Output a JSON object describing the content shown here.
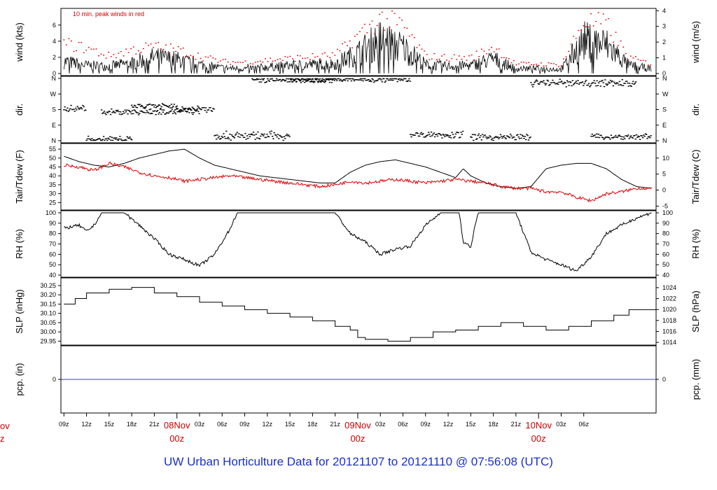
{
  "figure_title": "UW Urban Horticulture Data for 20121107  to  20121110 @ 07:56:08  (UTC)",
  "chart_data": [
    {
      "type": "line",
      "panel": "wind",
      "ylabel_left": "wind (kts)",
      "ylabel_right": "wind (m/s)",
      "ylim": [
        0,
        7.8
      ],
      "yticks_left": [
        0,
        2,
        4,
        6
      ],
      "yticks_right": [
        0,
        1,
        2,
        3,
        4
      ],
      "right_scale": "m/s",
      "annotation": "10 min. peak winds in red",
      "series": [
        {
          "role": "mean",
          "color": "#000000",
          "x": [
            0,
            3,
            6,
            9,
            12,
            15,
            18,
            21,
            24,
            27,
            30,
            33,
            36,
            39,
            42,
            45,
            48,
            51,
            54,
            57,
            60,
            63,
            66,
            69,
            72,
            75,
            78
          ],
          "y": [
            1.5,
            1.0,
            0.9,
            1.3,
            2.0,
            1.7,
            1.1,
            0.7,
            0.6,
            0.8,
            1.0,
            1.1,
            1.2,
            2.5,
            4.2,
            3.2,
            1.1,
            0.9,
            1.0,
            1.8,
            0.6,
            0.6,
            0.5,
            4.0,
            3.5,
            1.0,
            0.6
          ]
        },
        {
          "role": "peak",
          "color": "#dd0000",
          "x": [
            0,
            3,
            6,
            9,
            12,
            15,
            18,
            21,
            24,
            27,
            30,
            33,
            36,
            39,
            42,
            45,
            48,
            51,
            54,
            57,
            60,
            63,
            66,
            69,
            72,
            75,
            78
          ],
          "y": [
            3.8,
            3.2,
            2.2,
            3.0,
            3.4,
            3.0,
            2.2,
            1.5,
            1.4,
            1.7,
            1.9,
            2.1,
            2.3,
            4.8,
            7.0,
            6.0,
            2.2,
            2.0,
            2.0,
            3.4,
            1.2,
            1.2,
            1.1,
            6.6,
            6.2,
            2.0,
            1.2
          ]
        }
      ]
    },
    {
      "type": "scatter",
      "panel": "direction",
      "ylabel_left": "dir.",
      "ylabel_right": "dir.",
      "ylim": [
        0,
        360
      ],
      "yticks": [
        {
          "v": 0,
          "label": "N"
        },
        {
          "v": 90,
          "label": "E"
        },
        {
          "v": 180,
          "label": "S"
        },
        {
          "v": 270,
          "label": "W"
        },
        {
          "v": 360,
          "label": "N"
        }
      ],
      "segments": [
        {
          "x": [
            0,
            3
          ],
          "y": [
            180,
            195
          ]
        },
        {
          "x": [
            3,
            9
          ],
          "y": [
            0,
            15
          ]
        },
        {
          "x": [
            5,
            18
          ],
          "y": [
            160,
            175
          ]
        },
        {
          "x": [
            9,
            15
          ],
          "y": [
            190,
            205
          ]
        },
        {
          "x": [
            15,
            20
          ],
          "y": [
            175,
            195
          ]
        },
        {
          "x": [
            20,
            30
          ],
          "y": [
            10,
            45
          ]
        },
        {
          "x": [
            25,
            36
          ],
          "y": [
            345,
            355
          ]
        },
        {
          "x": [
            30,
            46
          ],
          "y": [
            348,
            358
          ]
        },
        {
          "x": [
            46,
            53
          ],
          "y": [
            25,
            45
          ]
        },
        {
          "x": [
            54,
            62
          ],
          "y": [
            10,
            30
          ]
        },
        {
          "x": [
            62,
            76
          ],
          "y": [
            320,
            345
          ]
        },
        {
          "x": [
            70,
            78
          ],
          "y": [
            15,
            30
          ]
        }
      ]
    },
    {
      "type": "line",
      "panel": "temperature",
      "ylabel_left": "Tair/Tdew (F)",
      "ylabel_right": "Tair/Tdew (C)",
      "ylim": [
        22,
        57
      ],
      "yticks_left": [
        25,
        30,
        35,
        40,
        45,
        50,
        55
      ],
      "yticks_right": [
        -5,
        0,
        5,
        10
      ],
      "series": [
        {
          "name": "Tair",
          "color": "#000000",
          "x": [
            0,
            2,
            4,
            6,
            8,
            10,
            12,
            14,
            16,
            18,
            20,
            22,
            24,
            26,
            28,
            30,
            32,
            34,
            36,
            38,
            40,
            42,
            44,
            46,
            48,
            50,
            52,
            53,
            54,
            56,
            58,
            60,
            62,
            64,
            66,
            68,
            70,
            72,
            74,
            76,
            78
          ],
          "y": [
            51,
            48,
            46,
            45,
            47,
            50,
            52,
            54,
            55,
            50,
            46,
            44,
            42,
            40,
            39,
            38,
            37,
            36,
            36,
            42,
            46,
            48,
            49,
            47,
            45,
            42,
            39,
            44,
            40,
            36,
            34,
            33,
            34,
            44,
            46,
            47,
            47,
            44,
            38,
            34,
            33
          ]
        },
        {
          "name": "Tdew",
          "color": "#dd0000",
          "x": [
            0,
            2,
            4,
            6,
            8,
            10,
            12,
            14,
            16,
            18,
            20,
            22,
            24,
            26,
            28,
            30,
            32,
            34,
            36,
            38,
            40,
            42,
            44,
            46,
            48,
            50,
            52,
            54,
            56,
            58,
            60,
            62,
            64,
            66,
            68,
            70,
            72,
            74,
            76,
            78
          ],
          "y": [
            46,
            45,
            43,
            47,
            45,
            42,
            40,
            39,
            37,
            38,
            39,
            40,
            39,
            38,
            37,
            36,
            35,
            34,
            35,
            37,
            36,
            37,
            38,
            37,
            36,
            37,
            38,
            37,
            36,
            34,
            33,
            33,
            31,
            31,
            28,
            26,
            30,
            31,
            33,
            33
          ]
        }
      ]
    },
    {
      "type": "line",
      "panel": "humidity",
      "ylabel_left": "RH (%)",
      "ylabel_right": "RH (%)",
      "ylim": [
        40,
        100
      ],
      "yticks": [
        40,
        50,
        60,
        70,
        80,
        90,
        100
      ],
      "series": [
        {
          "name": "RH",
          "color": "#000000",
          "x": [
            0,
            2,
            3,
            4,
            5,
            6,
            8,
            10,
            12,
            14,
            16,
            18,
            20,
            22,
            23,
            24,
            26,
            28,
            30,
            32,
            34,
            36,
            38,
            40,
            42,
            44,
            46,
            48,
            50,
            52,
            52.5,
            53,
            54,
            54.5,
            55,
            56,
            58,
            60,
            62,
            64,
            66,
            68,
            70,
            72,
            74,
            76,
            78
          ],
          "y": [
            85,
            88,
            82,
            88,
            100,
            100,
            100,
            88,
            75,
            60,
            55,
            49,
            60,
            84,
            100,
            100,
            100,
            100,
            100,
            100,
            100,
            100,
            80,
            72,
            60,
            65,
            68,
            88,
            100,
            100,
            100,
            72,
            67,
            85,
            100,
            100,
            100,
            100,
            62,
            55,
            50,
            44,
            58,
            80,
            88,
            95,
            100
          ]
        }
      ]
    },
    {
      "type": "line",
      "panel": "pressure",
      "ylabel_left": "SLP (inHg)",
      "ylabel_right": "SLP (hPa)",
      "ylim": [
        29.94,
        30.28
      ],
      "yticks_left": [
        29.95,
        30.0,
        30.05,
        30.1,
        30.15,
        30.2,
        30.25
      ],
      "yticks_right": [
        1014,
        1016,
        1018,
        1020,
        1022,
        1024
      ],
      "series": [
        {
          "name": "SLP",
          "color": "#000000",
          "x": [
            0,
            1.5,
            3,
            6,
            9,
            12,
            15,
            18,
            21,
            24,
            27,
            30,
            33,
            36,
            38,
            39,
            40,
            43,
            46,
            49,
            52,
            55,
            58,
            61,
            64,
            67,
            70,
            73,
            75,
            78
          ],
          "y": [
            30.15,
            30.18,
            30.21,
            30.23,
            30.24,
            30.21,
            30.19,
            30.16,
            30.14,
            30.12,
            30.1,
            30.08,
            30.06,
            30.03,
            30.01,
            29.97,
            29.96,
            29.95,
            29.97,
            30.0,
            30.01,
            30.03,
            30.05,
            30.03,
            30.01,
            30.03,
            30.06,
            30.09,
            30.12,
            30.12
          ]
        }
      ]
    },
    {
      "type": "line",
      "panel": "precipitation",
      "ylabel_left": "pcp. (in)",
      "ylabel_right": "pcp. (mm)",
      "yticks_left": [
        0
      ],
      "yticks_right": [
        0
      ],
      "series": [
        {
          "name": "pcp",
          "color": "#3a3ae0",
          "x": [
            0,
            78
          ],
          "y": [
            0,
            0
          ]
        }
      ]
    }
  ],
  "time_axis": {
    "tick_labels": [
      "09z",
      "12z",
      "15z",
      "18z",
      "21z",
      "03z",
      "06z",
      "09z",
      "12z",
      "15z",
      "18z",
      "21z",
      "03z",
      "06z",
      "09z",
      "12z",
      "15z",
      "18z",
      "21z",
      "03z",
      "06z"
    ],
    "tick_hours": [
      0,
      3,
      6,
      9,
      12,
      18,
      21,
      24,
      27,
      30,
      33,
      36,
      42,
      45,
      48,
      51,
      54,
      57,
      60,
      66,
      69
    ],
    "day_labels": [
      {
        "hour": 15,
        "date": "08Nov",
        "time": "00z"
      },
      {
        "hour": 39,
        "date": "09Nov",
        "time": "00z"
      },
      {
        "hour": 63,
        "date": "10Nov",
        "time": "00z"
      }
    ],
    "edge_label": {
      "date": "ov",
      "time": "z"
    }
  }
}
